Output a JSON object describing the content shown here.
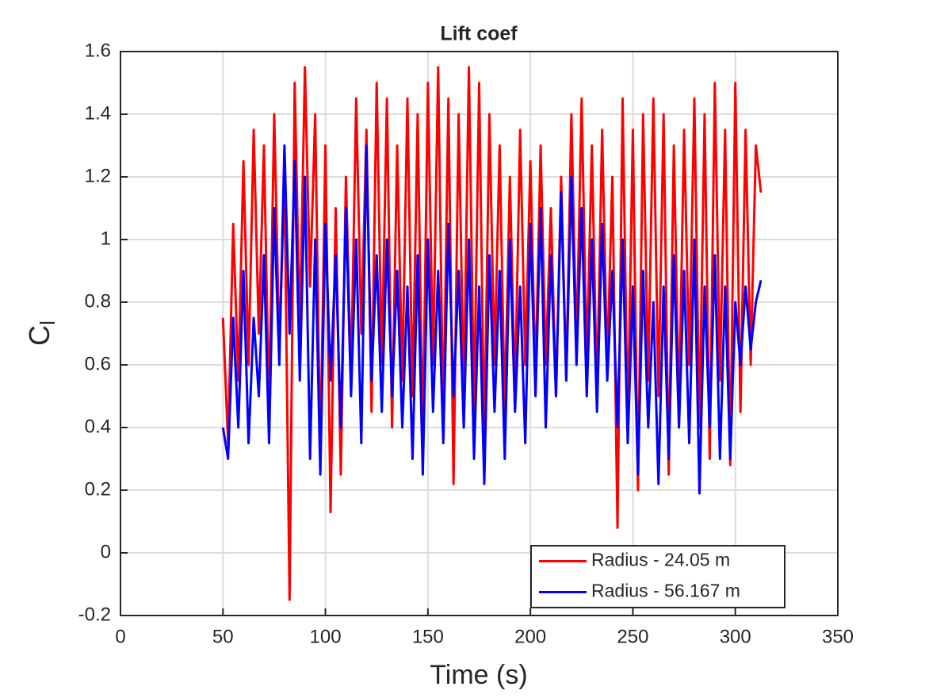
{
  "chart_data": {
    "type": "line",
    "title": "Lift coef",
    "xlabel": "Time (s)",
    "ylabel": [
      "C",
      "l"
    ],
    "x": [
      50,
      52.5,
      55,
      57.5,
      60,
      62.5,
      65,
      67.5,
      70,
      72.5,
      75,
      77.5,
      80,
      82.5,
      85,
      87.5,
      90,
      92.5,
      95,
      97.5,
      100,
      102.5,
      105,
      107.5,
      110,
      112.5,
      115,
      117.5,
      120,
      122.5,
      125,
      127.5,
      130,
      132.5,
      135,
      137.5,
      140,
      142.5,
      145,
      147.5,
      150,
      152.5,
      155,
      157.5,
      160,
      162.5,
      165,
      167.5,
      170,
      172.5,
      175,
      177.5,
      180,
      182.5,
      185,
      187.5,
      190,
      192.5,
      195,
      197.5,
      200,
      202.5,
      205,
      207.5,
      210,
      212.5,
      215,
      217.5,
      220,
      222.5,
      225,
      227.5,
      230,
      232.5,
      235,
      237.5,
      240,
      242.5,
      245,
      247.5,
      250,
      252.5,
      255,
      257.5,
      260,
      262.5,
      265,
      267.5,
      270,
      272.5,
      275,
      277.5,
      280,
      282.5,
      285,
      287.5,
      290,
      292.5,
      295,
      297.5,
      300,
      302.5,
      305,
      307.5,
      310,
      312.5
    ],
    "series": [
      {
        "name": "Radius - 24.05 m",
        "color": "#ff0000",
        "values": [
          0.75,
          0.35,
          1.05,
          0.55,
          1.25,
          0.6,
          1.35,
          0.7,
          1.3,
          0.45,
          1.4,
          0.65,
          1.2,
          -0.15,
          1.5,
          0.7,
          1.55,
          0.85,
          1.4,
          0.3,
          1.3,
          0.13,
          1.1,
          0.25,
          1.2,
          0.55,
          1.45,
          0.7,
          1.35,
          0.45,
          1.5,
          0.6,
          1.45,
          0.4,
          1.3,
          0.55,
          1.45,
          0.5,
          1.4,
          0.35,
          1.5,
          0.6,
          1.55,
          0.4,
          1.45,
          0.22,
          1.4,
          0.5,
          1.55,
          0.45,
          1.5,
          0.35,
          1.4,
          0.6,
          1.3,
          0.45,
          1.2,
          0.5,
          1.35,
          0.6,
          1.25,
          0.55,
          1.3,
          0.6,
          1.1,
          0.5,
          1.2,
          0.55,
          1.4,
          0.65,
          1.45,
          0.6,
          1.3,
          0.5,
          1.35,
          0.6,
          1.2,
          0.08,
          1.45,
          0.4,
          1.35,
          0.2,
          1.4,
          0.55,
          1.45,
          0.5,
          1.4,
          0.25,
          1.3,
          0.45,
          1.35,
          0.6,
          1.45,
          0.4,
          1.4,
          0.3,
          1.5,
          0.55,
          1.35,
          0.28,
          1.5,
          0.45,
          1.35,
          0.6,
          1.3,
          1.15
        ]
      },
      {
        "name": "Radius - 56.167 m",
        "color": "#0000ff",
        "values": [
          0.4,
          0.3,
          0.75,
          0.4,
          0.9,
          0.35,
          0.75,
          0.5,
          0.95,
          0.35,
          1.1,
          0.6,
          1.3,
          0.7,
          1.25,
          0.55,
          1.2,
          0.3,
          1.0,
          0.25,
          1.05,
          0.55,
          0.95,
          0.4,
          1.1,
          0.5,
          1.0,
          0.35,
          1.3,
          0.55,
          0.95,
          0.45,
          1.0,
          0.5,
          0.9,
          0.4,
          0.85,
          0.3,
          0.95,
          0.25,
          1.0,
          0.45,
          0.9,
          0.35,
          1.05,
          0.5,
          0.9,
          0.4,
          1.0,
          0.3,
          0.85,
          0.22,
          0.95,
          0.45,
          0.9,
          0.3,
          1.0,
          0.45,
          0.85,
          0.35,
          1.05,
          0.5,
          1.1,
          0.4,
          0.95,
          0.5,
          1.15,
          0.55,
          1.2,
          0.6,
          1.1,
          0.5,
          1.0,
          0.45,
          1.05,
          0.55,
          0.9,
          0.4,
          1.0,
          0.35,
          0.85,
          0.25,
          0.9,
          0.4,
          0.8,
          0.22,
          0.85,
          0.3,
          0.95,
          0.4,
          0.9,
          0.35,
          1.0,
          0.19,
          0.85,
          0.4,
          0.95,
          0.3,
          0.85,
          0.3,
          0.8,
          0.6,
          0.85,
          0.65,
          0.8,
          0.87
        ]
      }
    ],
    "xlim": [
      0,
      350
    ],
    "xticks": [
      0,
      50,
      100,
      150,
      200,
      250,
      300,
      350
    ],
    "ylim": [
      -0.2,
      1.6
    ],
    "yticks": [
      -0.2,
      0,
      0.2,
      0.4,
      0.6,
      0.8,
      1,
      1.2,
      1.4,
      1.6
    ],
    "grid": true,
    "legend": "lower right"
  }
}
